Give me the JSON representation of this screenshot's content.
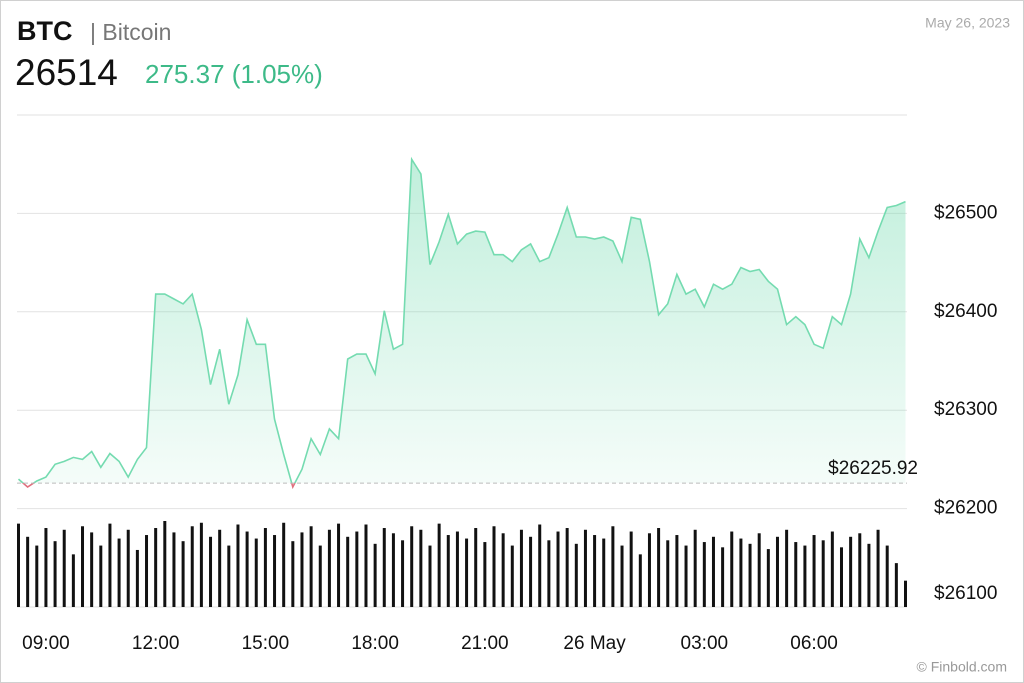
{
  "chart_data": {
    "type": "area",
    "title": "BTC",
    "subtitle": "| Bitcoin",
    "price": 26514,
    "change": "275.37 (1.05%)",
    "date": "May 26, 2023",
    "source": "© Finbold.com",
    "color": "#74dbb0",
    "down_color": "#e0707e",
    "change_color": "#3dba88",
    "categories": [
      null,
      null,
      null,
      "09:00",
      null,
      null,
      null,
      null,
      null,
      null,
      null,
      null,
      null,
      null,
      null,
      "12:00",
      null,
      null,
      null,
      null,
      null,
      null,
      null,
      null,
      null,
      null,
      null,
      "15:00",
      null,
      null,
      null,
      null,
      null,
      null,
      null,
      null,
      null,
      null,
      null,
      "18:00",
      null,
      null,
      null,
      null,
      null,
      null,
      null,
      null,
      null,
      null,
      null,
      "21:00",
      null,
      null,
      null,
      null,
      null,
      null,
      null,
      null,
      null,
      null,
      null,
      "26 May",
      null,
      null,
      null,
      null,
      null,
      null,
      null,
      null,
      null,
      null,
      null,
      "03:00",
      null,
      null,
      null,
      null,
      null,
      null,
      null,
      null,
      null,
      null,
      null,
      "06:00",
      null,
      null,
      null,
      null,
      null,
      null,
      null,
      null,
      null,
      null
    ],
    "values": [
      26230,
      26222,
      26228,
      26232,
      26245,
      26248,
      26252,
      26250,
      26258,
      26242,
      26256,
      26248,
      26232,
      26250,
      26262,
      26418,
      26418,
      26413,
      26408,
      26418,
      26382,
      26326,
      26362,
      26306,
      26336,
      26392,
      26367,
      26367,
      26291,
      26255,
      26222,
      26240,
      26271,
      26255,
      26281,
      26271,
      26352,
      26357,
      26357,
      26337,
      26401,
      26362,
      26367,
      26555,
      26540,
      26448,
      26471,
      26499,
      26469,
      26479,
      26482,
      26481,
      26458,
      26458,
      26451,
      26463,
      26469,
      26451,
      26455,
      26479,
      26506,
      26476,
      26476,
      26474,
      26476,
      26472,
      26451,
      26496,
      26494,
      26451,
      26397,
      26408,
      26438,
      26418,
      26423,
      26405,
      26428,
      26423,
      26428,
      26445,
      26441,
      26443,
      26431,
      26423,
      26387,
      26395,
      26387,
      26367,
      26363,
      26395,
      26387,
      26418,
      26474,
      26455,
      26482,
      26506,
      26508,
      26512
    ],
    "volume": {
      "color": "#111111",
      "values": [
        95,
        80,
        70,
        90,
        75,
        88,
        60,
        92,
        85,
        70,
        95,
        78,
        88,
        65,
        82,
        90,
        98,
        85,
        75,
        92,
        96,
        80,
        88,
        70,
        94,
        86,
        78,
        90,
        82,
        96,
        75,
        85,
        92,
        70,
        88,
        95,
        80,
        86,
        94,
        72,
        90,
        84,
        76,
        92,
        88,
        70,
        95,
        82,
        86,
        78,
        90,
        74,
        92,
        84,
        70,
        88,
        80,
        94,
        76,
        86,
        90,
        72,
        88,
        82,
        78,
        92,
        70,
        86,
        60,
        84,
        90,
        76,
        82,
        70,
        88,
        74,
        80,
        68,
        86,
        78,
        72,
        84,
        66,
        80,
        88,
        74,
        70,
        82,
        76,
        86,
        68,
        80,
        84,
        72,
        88,
        70,
        50,
        30
      ]
    },
    "reference": {
      "value": 26225.92,
      "label": "$26225.92"
    },
    "ylim": [
      26100,
      26600
    ],
    "yticks": [
      {
        "value": 26100,
        "label": "$26100"
      },
      {
        "value": 26200,
        "label": "$26200"
      },
      {
        "value": 26300,
        "label": "$26300"
      },
      {
        "value": 26400,
        "label": "$26400"
      },
      {
        "value": 26500,
        "label": "$26500"
      }
    ],
    "grid": true
  }
}
